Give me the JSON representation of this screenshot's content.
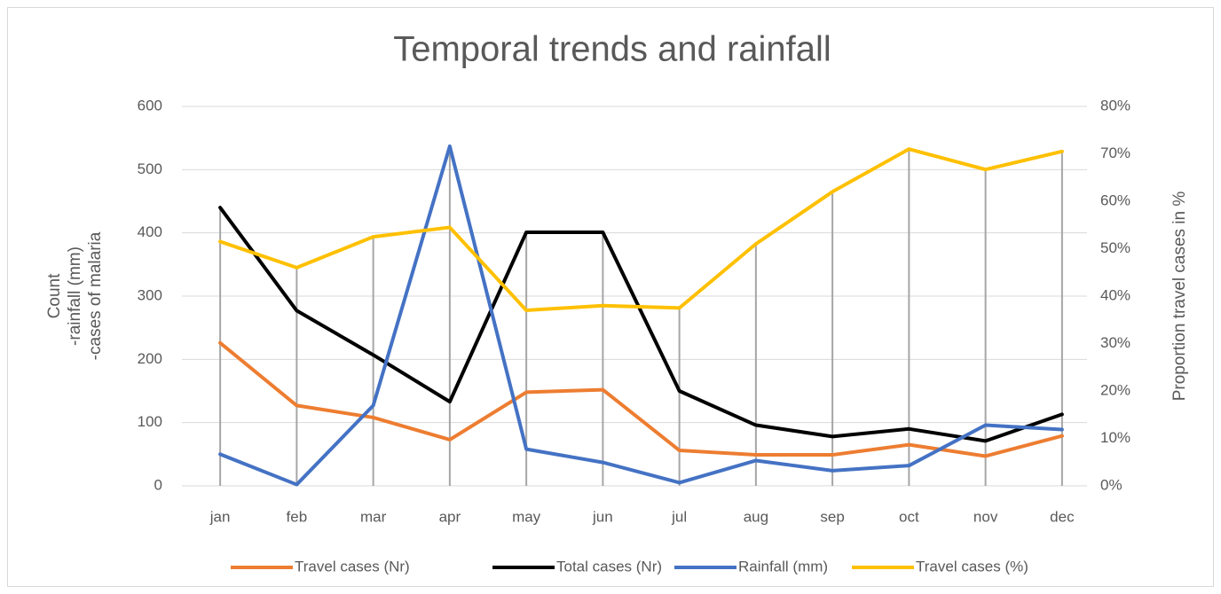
{
  "chart_data": {
    "type": "line",
    "title": "Temporal trends and rainfall",
    "y_label": [
      "Count",
      "-rainfall (mm)",
      "-cases of malaria"
    ],
    "y2_label": "Proportion travel cases in %",
    "categories": [
      "jan",
      "feb",
      "mar",
      "apr",
      "may",
      "jun",
      "jul",
      "aug",
      "sep",
      "oct",
      "nov",
      "dec"
    ],
    "ylim": [
      0,
      600
    ],
    "yticks": [
      0,
      100,
      200,
      300,
      400,
      500,
      600
    ],
    "y2lim": [
      0,
      80
    ],
    "y2ticks": [
      {
        "value": 0,
        "label": "0%"
      },
      {
        "value": 10,
        "label": "10%"
      },
      {
        "value": 20,
        "label": "20%"
      },
      {
        "value": 30,
        "label": "30%"
      },
      {
        "value": 40,
        "label": "40%"
      },
      {
        "value": 50,
        "label": "50%"
      },
      {
        "value": 60,
        "label": "60%"
      },
      {
        "value": 70,
        "label": "70%"
      },
      {
        "value": 80,
        "label": "80%"
      }
    ],
    "grid": true,
    "drop_lines": true,
    "legend": "bottom",
    "series": [
      {
        "name": "Travel cases (Nr)",
        "color": "#ED7D31",
        "values": [
          226,
          127,
          108,
          73,
          148,
          152,
          56,
          49,
          49,
          65,
          47,
          79
        ]
      },
      {
        "name": "Total cases (Nr)",
        "color": "#000000",
        "values": [
          440,
          277,
          207,
          133,
          401,
          401,
          150,
          96,
          78,
          90,
          71,
          113
        ]
      },
      {
        "name": "Rainfall (mm)",
        "color": "#4472C4",
        "values": [
          50,
          2,
          127,
          537,
          58,
          37,
          5,
          40,
          24,
          32,
          96,
          89
        ]
      },
      {
        "name": "Travel cases (%)",
        "color": "#FFC000",
        "axis": "y2",
        "values": [
          51.5,
          46,
          52.5,
          54.5,
          37,
          38,
          37.5,
          51,
          62,
          71,
          66.7,
          70.5
        ]
      }
    ]
  }
}
